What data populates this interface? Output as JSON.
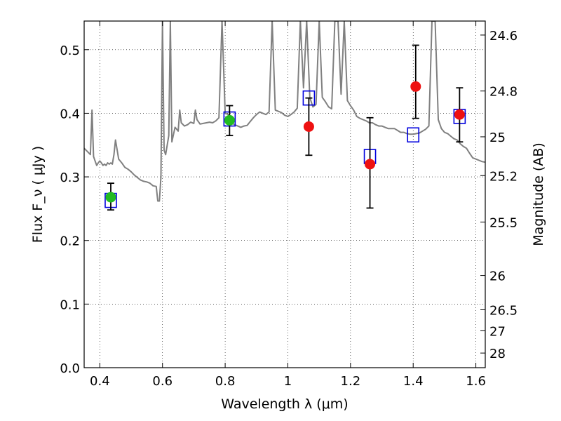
{
  "chart_data": {
    "type": "scatter",
    "xlabel": "Wavelength  λ (μm)",
    "ylabel": "Flux  F_ν  ( μJy )",
    "ylabel_right": "Magnitude (AB)",
    "xlim": [
      0.35,
      1.63
    ],
    "ylim": [
      0.0,
      0.545
    ],
    "grid": true,
    "x_ticks": [
      {
        "value": 0.4,
        "label": "0.4"
      },
      {
        "value": 0.6,
        "label": "0.6"
      },
      {
        "value": 0.8,
        "label": "0.8"
      },
      {
        "value": 1.0,
        "label": "1"
      },
      {
        "value": 1.2,
        "label": "1.2"
      },
      {
        "value": 1.4,
        "label": "1.4"
      },
      {
        "value": 1.6,
        "label": "1.6"
      }
    ],
    "y_ticks": [
      {
        "value": 0.0,
        "label": "0.0"
      },
      {
        "value": 0.1,
        "label": "0.1"
      },
      {
        "value": 0.2,
        "label": "0.2"
      },
      {
        "value": 0.3,
        "label": "0.3"
      },
      {
        "value": 0.4,
        "label": "0.4"
      },
      {
        "value": 0.5,
        "label": "0.5"
      }
    ],
    "right_ticks": [
      {
        "flux": 0.523,
        "label": "24.6"
      },
      {
        "flux": 0.435,
        "label": "24.8"
      },
      {
        "flux": 0.363,
        "label": "25"
      },
      {
        "flux": 0.302,
        "label": "25.2"
      },
      {
        "flux": 0.229,
        "label": "25.5"
      },
      {
        "flux": 0.145,
        "label": "26"
      },
      {
        "flux": 0.091,
        "label": "26.5"
      },
      {
        "flux": 0.058,
        "label": "27"
      },
      {
        "flux": 0.023,
        "label": "28"
      }
    ],
    "colors": {
      "model": "#808080",
      "green": "#22bb22",
      "red": "#ee1111",
      "box": "#0000dd",
      "errorbar": "#000000"
    },
    "series": [
      {
        "points": [
          {
            "x": 0.435,
            "y": 0.268,
            "yerr_low": 0.02,
            "yerr_high": 0.022
          },
          {
            "x": 0.814,
            "y": 0.389,
            "yerr_low": 0.024,
            "yerr_high": 0.023
          }
        ],
        "marker": "circle",
        "color": "#22bb22"
      },
      {
        "points": [
          {
            "x": 1.067,
            "y": 0.379,
            "yerr_low": 0.045,
            "yerr_high": 0.045
          },
          {
            "x": 1.262,
            "y": 0.32,
            "yerr_low": 0.069,
            "yerr_high": 0.073
          },
          {
            "x": 1.408,
            "y": 0.442,
            "yerr_low": 0.05,
            "yerr_high": 0.065
          },
          {
            "x": 1.548,
            "y": 0.398,
            "yerr_low": 0.043,
            "yerr_high": 0.042
          }
        ],
        "marker": "circle",
        "color": "#ee1111"
      },
      {
        "points": [
          {
            "x": 0.435,
            "y": 0.263
          },
          {
            "x": 0.814,
            "y": 0.391
          },
          {
            "x": 1.067,
            "y": 0.424
          },
          {
            "x": 1.262,
            "y": 0.332
          },
          {
            "x": 1.4,
            "y": 0.366
          },
          {
            "x": 1.548,
            "y": 0.395
          }
        ],
        "marker": "open-square",
        "color": "#0000dd"
      },
      {
        "marker": "line",
        "color": "#808080",
        "x": [
          0.35,
          0.36,
          0.37,
          0.375,
          0.38,
          0.385,
          0.39,
          0.395,
          0.4,
          0.405,
          0.41,
          0.415,
          0.42,
          0.425,
          0.43,
          0.435,
          0.44,
          0.445,
          0.45,
          0.46,
          0.47,
          0.48,
          0.49,
          0.5,
          0.51,
          0.52,
          0.53,
          0.54,
          0.55,
          0.56,
          0.57,
          0.58,
          0.585,
          0.59,
          0.595,
          0.6,
          0.605,
          0.61,
          0.62,
          0.625,
          0.63,
          0.64,
          0.65,
          0.655,
          0.66,
          0.67,
          0.68,
          0.69,
          0.7,
          0.705,
          0.71,
          0.72,
          0.73,
          0.74,
          0.75,
          0.76,
          0.77,
          0.78,
          0.79,
          0.8,
          0.81,
          0.82,
          0.83,
          0.84,
          0.85,
          0.86,
          0.87,
          0.88,
          0.89,
          0.9,
          0.91,
          0.92,
          0.93,
          0.94,
          0.95,
          0.96,
          0.97,
          0.98,
          0.99,
          1.0,
          1.01,
          1.02,
          1.03,
          1.04,
          1.05,
          1.06,
          1.07,
          1.08,
          1.09,
          1.1,
          1.11,
          1.12,
          1.13,
          1.14,
          1.15,
          1.16,
          1.17,
          1.18,
          1.19,
          1.2,
          1.21,
          1.22,
          1.23,
          1.24,
          1.25,
          1.26,
          1.27,
          1.28,
          1.29,
          1.3,
          1.31,
          1.32,
          1.33,
          1.34,
          1.35,
          1.36,
          1.37,
          1.38,
          1.39,
          1.4,
          1.41,
          1.42,
          1.43,
          1.44,
          1.45,
          1.46,
          1.47,
          1.48,
          1.49,
          1.5,
          1.51,
          1.52,
          1.53,
          1.54,
          1.55,
          1.56,
          1.57,
          1.58,
          1.59,
          1.6,
          1.61,
          1.62,
          1.63
        ],
        "y": [
          0.345,
          0.34,
          0.335,
          0.405,
          0.332,
          0.325,
          0.318,
          0.322,
          0.325,
          0.322,
          0.318,
          0.32,
          0.318,
          0.322,
          0.32,
          0.322,
          0.32,
          0.335,
          0.358,
          0.328,
          0.322,
          0.315,
          0.312,
          0.308,
          0.303,
          0.299,
          0.295,
          0.293,
          0.292,
          0.29,
          0.286,
          0.285,
          0.262,
          0.262,
          0.3,
          0.545,
          0.342,
          0.335,
          0.365,
          0.545,
          0.355,
          0.378,
          0.372,
          0.405,
          0.385,
          0.38,
          0.382,
          0.386,
          0.384,
          0.405,
          0.39,
          0.383,
          0.384,
          0.385,
          0.386,
          0.385,
          0.388,
          0.393,
          0.545,
          0.4,
          0.398,
          0.385,
          0.382,
          0.38,
          0.378,
          0.38,
          0.381,
          0.387,
          0.393,
          0.398,
          0.402,
          0.4,
          0.398,
          0.402,
          0.545,
          0.405,
          0.403,
          0.401,
          0.397,
          0.395,
          0.398,
          0.402,
          0.408,
          0.545,
          0.44,
          0.545,
          0.425,
          0.41,
          0.414,
          0.545,
          0.425,
          0.418,
          0.41,
          0.407,
          0.545,
          0.545,
          0.43,
          0.545,
          0.42,
          0.412,
          0.405,
          0.395,
          0.392,
          0.39,
          0.388,
          0.385,
          0.385,
          0.382,
          0.38,
          0.38,
          0.378,
          0.376,
          0.376,
          0.376,
          0.373,
          0.37,
          0.37,
          0.368,
          0.367,
          0.367,
          0.368,
          0.369,
          0.372,
          0.375,
          0.38,
          0.545,
          0.545,
          0.39,
          0.376,
          0.37,
          0.368,
          0.364,
          0.36,
          0.358,
          0.352,
          0.348,
          0.345,
          0.337,
          0.33,
          0.328,
          0.326,
          0.324,
          0.323
        ]
      }
    ]
  }
}
